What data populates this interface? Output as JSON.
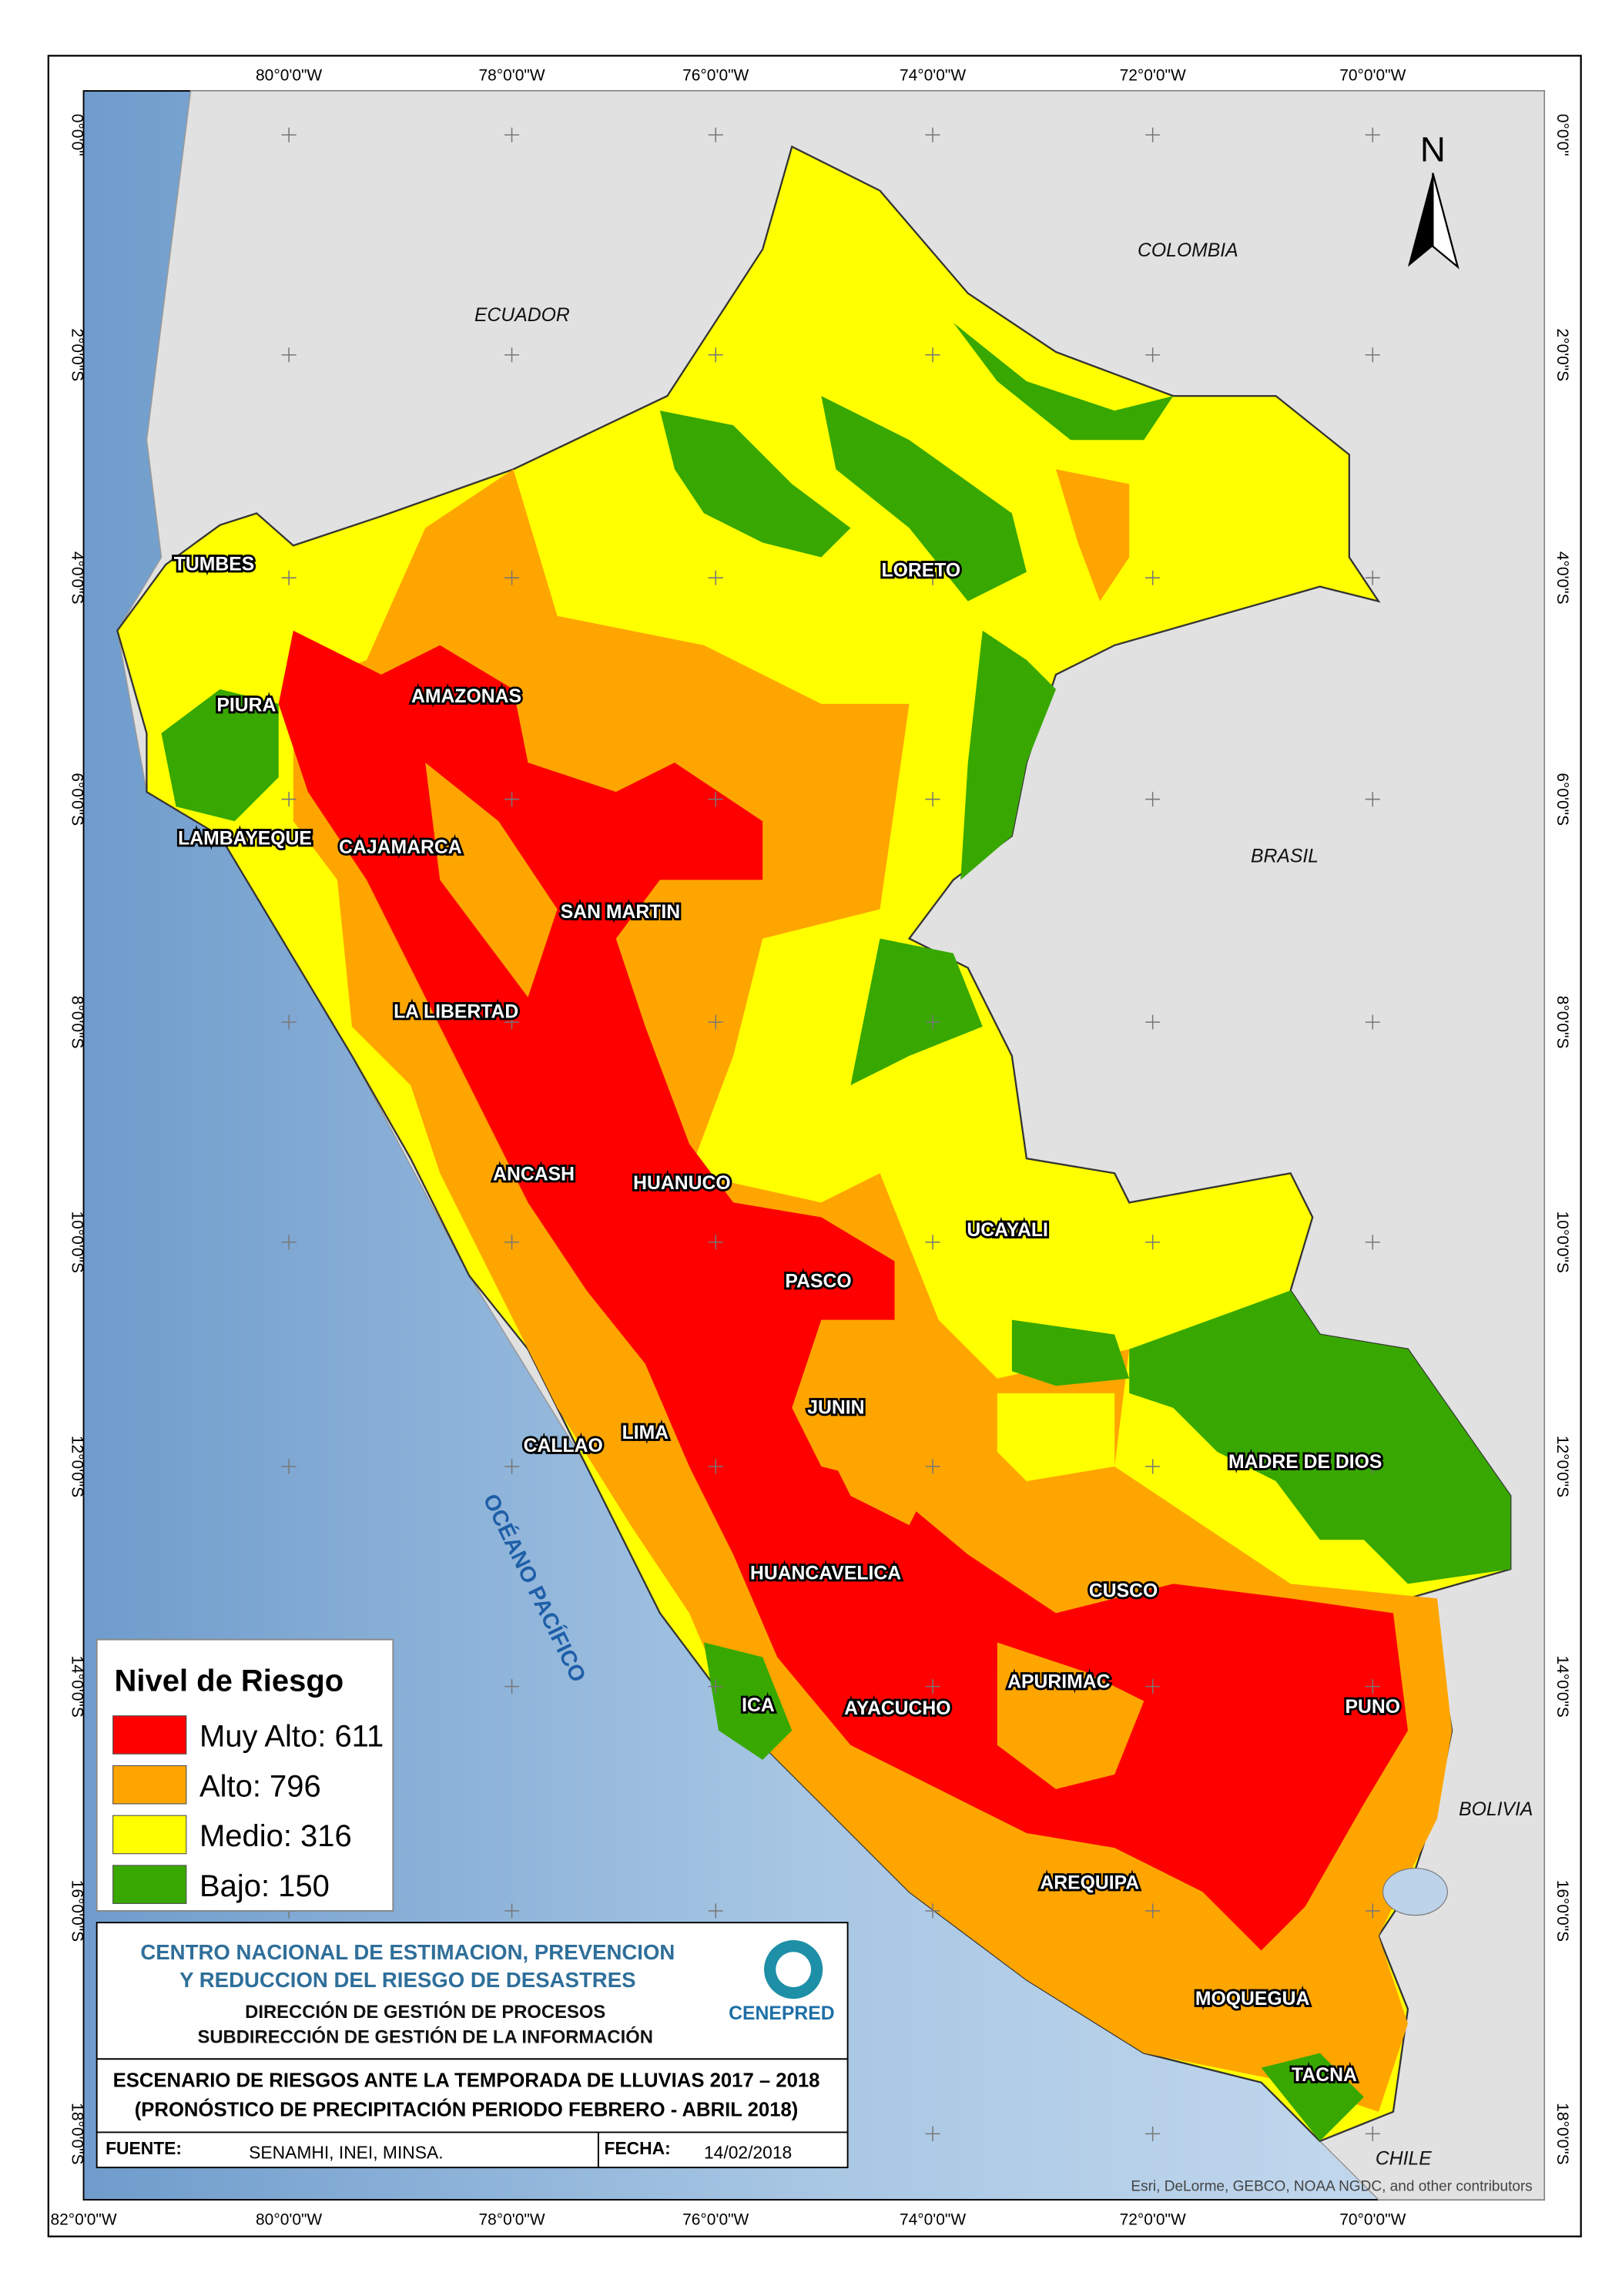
{
  "map": {
    "grid_labels": {
      "top": [
        "80°0'0\"W",
        "78°0'0\"W",
        "76°0'0\"W",
        "74°0'0\"W",
        "72°0'0\"W",
        "70°0'0\"W"
      ],
      "bottom": [
        "82°0'0\"W",
        "80°0'0\"W",
        "78°0'0\"W",
        "76°0'0\"W",
        "74°0'0\"W",
        "72°0'0\"W",
        "70°0'0\"W"
      ],
      "left": [
        "0°0'0\"",
        "2°0'0\"S",
        "4°0'0\"S",
        "6°0'0\"S",
        "8°0'0\"S",
        "10°0'0\"S",
        "12°0'0\"S",
        "14°0'0\"S",
        "16°0'0\"S",
        "18°0'0\"S"
      ],
      "right": [
        "0°0'0\"",
        "2°0'0\"S",
        "4°0'0\"S",
        "6°0'0\"S",
        "8°0'0\"S",
        "10°0'0\"S",
        "12°0'0\"S",
        "14°0'0\"S",
        "16°0'0\"S",
        "18°0'0\"S"
      ]
    },
    "north": "N",
    "countries": [
      "ECUADOR",
      "COLOMBIA",
      "BRASIL",
      "BOLIVIA",
      "CHILE"
    ],
    "ocean": "OCÉANO PACÍFICO",
    "departments": [
      "TUMBES",
      "PIURA",
      "AMAZONAS",
      "LAMBAYEQUE",
      "CAJAMARCA",
      "SAN MARTIN",
      "LA LIBERTAD",
      "LORETO",
      "ANCASH",
      "HUANUCO",
      "UCAYALI",
      "PASCO",
      "JUNIN",
      "CALLAO",
      "LIMA",
      "MADRE DE DIOS",
      "HUANCAVELICA",
      "CUSCO",
      "ICA",
      "AYACUCHO",
      "APURIMAC",
      "PUNO",
      "AREQUIPA",
      "MOQUEGUA",
      "TACNA"
    ],
    "credits": "Esri, DeLorme, GEBCO, NOAA NGDC, and other contributors"
  },
  "legend": {
    "title": "Nivel de Riesgo",
    "items": [
      {
        "label": "Muy Alto: 611",
        "color": "#ff0000"
      },
      {
        "label": "Alto: 796",
        "color": "#ffa500"
      },
      {
        "label": "Medio: 316",
        "color": "#ffff00"
      },
      {
        "label": "Bajo: 150",
        "color": "#38a800"
      }
    ]
  },
  "title_block": {
    "org": [
      "CENTRO NACIONAL DE ESTIMACION, PREVENCION",
      "Y REDUCCION DEL RIESGO DE DESASTRES"
    ],
    "direction": "DIRECCIÓN DE GESTIÓN DE PROCESOS",
    "subdirection": "SUBDIRECCIÓN DE GESTIÓN DE LA INFORMACIÓN",
    "logo": "CENEPRED",
    "title": [
      "ESCENARIO DE RIESGOS ANTE LA TEMPORADA DE LLUVIAS 2017 – 2018",
      "(PRONÓSTICO DE PRECIPITACIÓN PERIODO FEBRERO - ABRIL 2018)"
    ],
    "source_label": "FUENTE:",
    "source": "SENAMHI, INEI, MINSA.",
    "date_label": "FECHA:",
    "date": "14/02/2018"
  }
}
